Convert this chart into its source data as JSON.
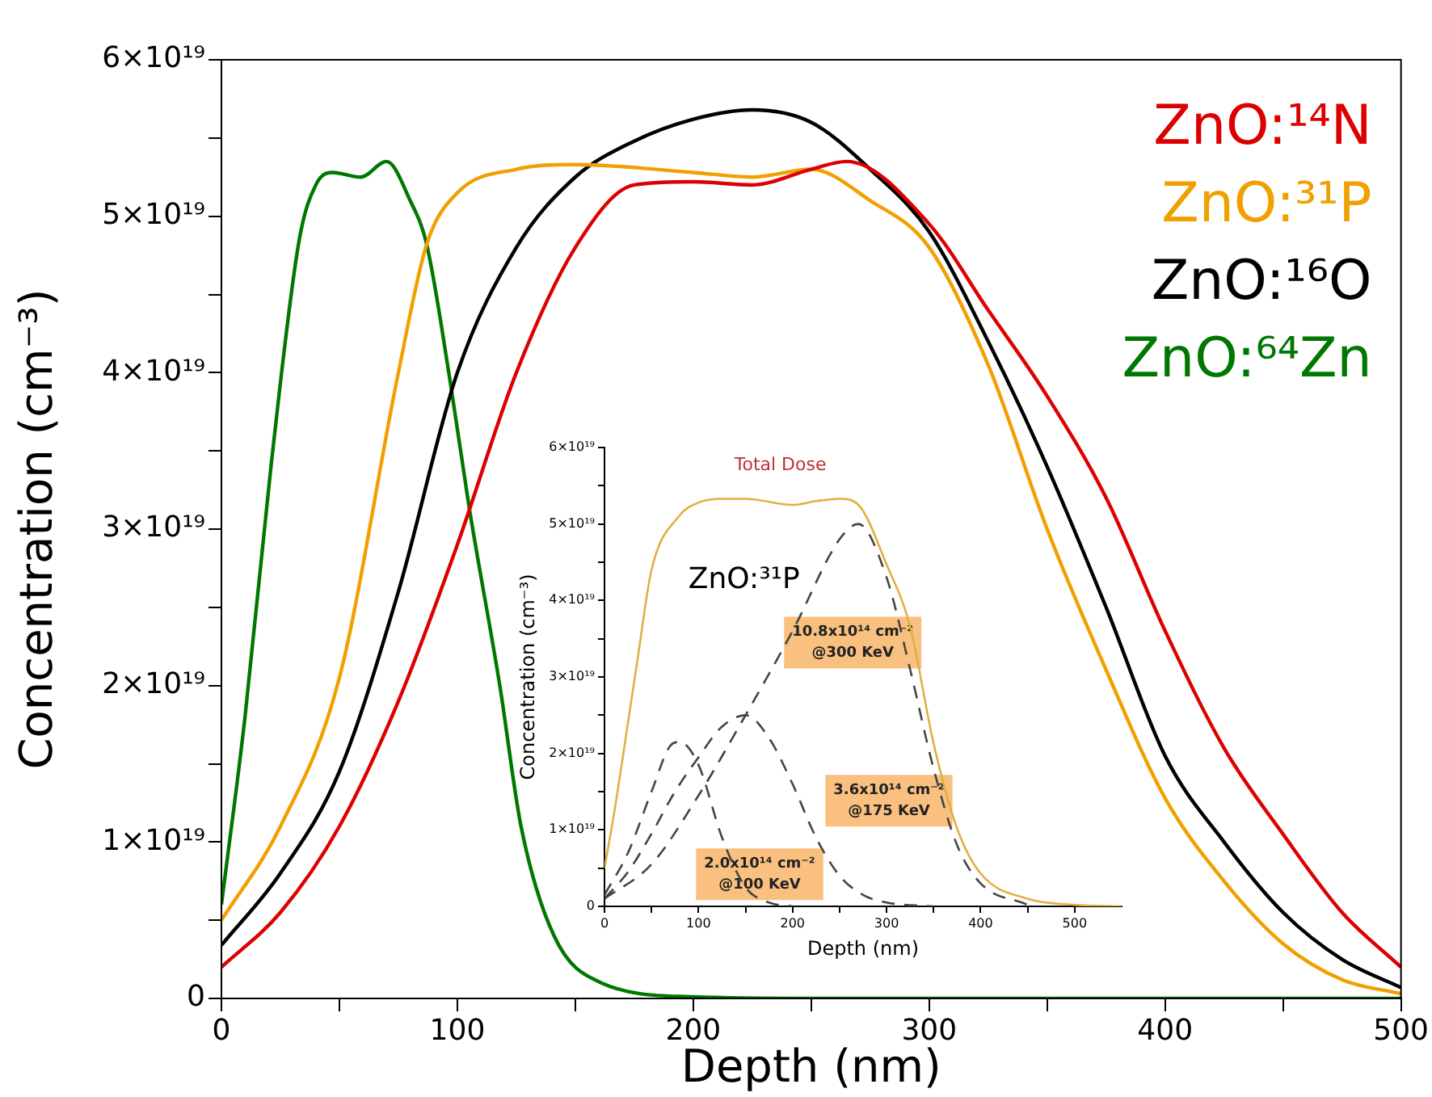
{
  "chart_data": [
    {
      "type": "line",
      "xlabel": "Depth (nm)",
      "ylabel": "Concentration (cm⁻³)",
      "xlim": [
        0,
        500
      ],
      "ylim": [
        0,
        6e+19
      ],
      "xticks": [
        0,
        {
          "value": 50,
          "label": null
        },
        100,
        {
          "value": 150,
          "label": null
        },
        200,
        {
          "value": 250,
          "label": null
        },
        300,
        {
          "value": 350,
          "label": null
        },
        400,
        {
          "value": 450,
          "label": null
        },
        500
      ],
      "yticks": [
        0,
        {
          "value": 5e+18,
          "label": null
        },
        {
          "value": 1e+19,
          "label": "1×10¹⁹"
        },
        {
          "value": 1.5e+19,
          "label": null
        },
        {
          "value": 2e+19,
          "label": "2×10¹⁹"
        },
        {
          "value": 2.5e+19,
          "label": null
        },
        {
          "value": 3e+19,
          "label": "3×10¹⁹"
        },
        {
          "value": 3.5e+19,
          "label": null
        },
        {
          "value": 4e+19,
          "label": "4×10¹⁹"
        },
        {
          "value": 4.5e+19,
          "label": null
        },
        {
          "value": 5e+19,
          "label": "5×10¹⁹"
        },
        {
          "value": 5.5e+19,
          "label": null
        },
        {
          "value": 6e+19,
          "label": "6×10¹⁹"
        }
      ],
      "grid": false,
      "legend": "top right",
      "marker": "none",
      "series": [
        {
          "name": "ZnO:¹⁴N",
          "color": "#dd0000",
          "x": [
            0,
            25,
            50,
            75,
            100,
            125,
            150,
            175,
            200,
            225,
            250,
            265,
            300,
            325,
            350,
            375,
            400,
            425,
            450,
            475,
            500
          ],
          "values": [
            2e+18,
            5.5e+18,
            1.1e+19,
            1.9e+19,
            2.9e+19,
            4e+19,
            4.8e+19,
            5.2e+19,
            5.22e+19,
            5.2e+19,
            5.3e+19,
            5.35e+19,
            4.95e+19,
            4.4e+19,
            3.85e+19,
            3.2e+19,
            2.35e+19,
            1.6e+19,
            1.05e+19,
            5.5e+18,
            2e+18
          ]
        },
        {
          "name": "ZnO:³¹P",
          "color": "#f0a000",
          "x": [
            0,
            25,
            50,
            75,
            87,
            100,
            125,
            150,
            200,
            225,
            250,
            275,
            300,
            325,
            350,
            375,
            400,
            425,
            450,
            475,
            500
          ],
          "values": [
            5e+18,
            1.1e+19,
            2.05e+19,
            4e+19,
            4.82e+19,
            5.15e+19,
            5.3e+19,
            5.33e+19,
            5.28e+19,
            5.25e+19,
            5.3e+19,
            5.1e+19,
            4.8e+19,
            4.05e+19,
            3e+19,
            2.1e+19,
            1.28e+19,
            7.5e+18,
            3.5e+18,
            1.2e+18,
            3e+17
          ]
        },
        {
          "name": "ZnO:¹⁶O",
          "color": "#000000",
          "x": [
            0,
            25,
            50,
            75,
            100,
            125,
            150,
            175,
            200,
            225,
            250,
            275,
            300,
            325,
            350,
            375,
            400,
            425,
            450,
            475,
            500
          ],
          "values": [
            3.4e+18,
            8e+18,
            1.45e+19,
            2.6e+19,
            4e+19,
            4.8e+19,
            5.25e+19,
            5.48e+19,
            5.62e+19,
            5.68e+19,
            5.6e+19,
            5.3e+19,
            4.9e+19,
            4.2e+19,
            3.4e+19,
            2.5e+19,
            1.55e+19,
            1e+19,
            5.5e+18,
            2.5e+18,
            7e+17
          ]
        },
        {
          "name": "ZnO:⁶⁴Zn",
          "color": "#007700",
          "x": [
            0,
            10,
            21,
            33,
            40,
            47,
            59,
            70,
            80,
            87,
            97,
            105,
            118,
            127,
            141,
            161,
            200,
            250,
            500
          ],
          "values": [
            6e+18,
            1.8e+19,
            3.4e+19,
            4.85e+19,
            5.2e+19,
            5.28e+19,
            5.25e+19,
            5.35e+19,
            5.1e+19,
            4.82e+19,
            3.94e+19,
            3.14e+19,
            2e+19,
            1.1e+19,
            4e+18,
            1e+18,
            1e+17,
            0,
            0
          ]
        }
      ]
    },
    {
      "type": "line",
      "xlabel": "Depth (nm)",
      "ylabel": "Concentration (cm⁻³)",
      "xlim": [
        0,
        550
      ],
      "ylim": [
        0,
        6e+19
      ],
      "xticks": [
        0,
        {
          "value": 50,
          "label": null
        },
        100,
        {
          "value": 150,
          "label": null
        },
        200,
        {
          "value": 250,
          "label": null
        },
        300,
        {
          "value": 350,
          "label": null
        },
        400,
        {
          "value": 450,
          "label": null
        },
        500
      ],
      "yticks": [
        0,
        {
          "value": 5e+18,
          "label": null
        },
        {
          "value": 1e+19,
          "label": "1×10¹⁹"
        },
        {
          "value": 1.5e+19,
          "label": null
        },
        {
          "value": 2e+19,
          "label": "2×10¹⁹"
        },
        {
          "value": 2.5e+19,
          "label": null
        },
        {
          "value": 3e+19,
          "label": "3×10¹⁹"
        },
        {
          "value": 3.5e+19,
          "label": null
        },
        {
          "value": 4e+19,
          "label": "4×10¹⁹"
        },
        {
          "value": 4.5e+19,
          "label": null
        },
        {
          "value": 5e+19,
          "label": "5×10¹⁹"
        },
        {
          "value": 5.5e+19,
          "label": null
        },
        {
          "value": 6e+19,
          "label": "6×10¹⁹"
        }
      ],
      "grid": false,
      "marker": "none",
      "series": [
        {
          "color": "#e0b040",
          "x": [
            0,
            10,
            25,
            36,
            50,
            79,
            100,
            125,
            150,
            200,
            225,
            250,
            270,
            300,
            325,
            350,
            375,
            400,
            450,
            500,
            550
          ],
          "values": [
            5e+18,
            1.2e+19,
            2.4e+19,
            3.3e+19,
            4.4e+19,
            5.1e+19,
            5.28e+19,
            5.33e+19,
            5.33e+19,
            5.25e+19,
            5.3e+19,
            5.33e+19,
            5.25e+19,
            4.47e+19,
            3.66e+19,
            2.13e+19,
            1.02e+19,
            4.3e+18,
            1e+18,
            2e+17,
            0
          ]
        },
        {
          "color": "#444444",
          "line_style": "dashed",
          "x": [
            0,
            25,
            50,
            70,
            80,
            100,
            125,
            150,
            175,
            200
          ],
          "values": [
            1.5e+18,
            7e+18,
            1.5e+19,
            2.1e+19,
            2.15e+19,
            1.85e+19,
            9e+18,
            2.5e+18,
            5e+17,
            0
          ]
        },
        {
          "color": "#444444",
          "line_style": "dashed",
          "x": [
            0,
            25,
            50,
            75,
            100,
            125,
            150,
            175,
            200,
            225,
            250,
            275,
            300,
            350
          ],
          "values": [
            1e+18,
            4.5e+18,
            9.5e+18,
            1.5e+19,
            1.95e+19,
            2.35e+19,
            2.5e+19,
            2.2e+19,
            1.6e+19,
            9e+18,
            4e+18,
            1.5e+18,
            5e+17,
            0
          ]
        },
        {
          "color": "#444444",
          "line_style": "dashed",
          "x": [
            0,
            50,
            100,
            150,
            200,
            250,
            270,
            300,
            325,
            350,
            375,
            400,
            450
          ],
          "values": [
            1e+18,
            5.5e+18,
            1.45e+19,
            2.5e+19,
            3.6e+19,
            4.8e+19,
            5e+19,
            4.3e+19,
            3.1e+19,
            1.8e+19,
            8e+18,
            3e+18,
            2e+17
          ]
        }
      ],
      "annotations": [
        "Total Dose",
        "ZnO:³¹P",
        "2.0x10¹⁴ cm⁻²\n@100 KeV",
        "10.8x10¹⁴ cm⁻²\n@300 KeV",
        "3.6x10¹⁴ cm⁻²\n@175 KeV"
      ]
    }
  ]
}
